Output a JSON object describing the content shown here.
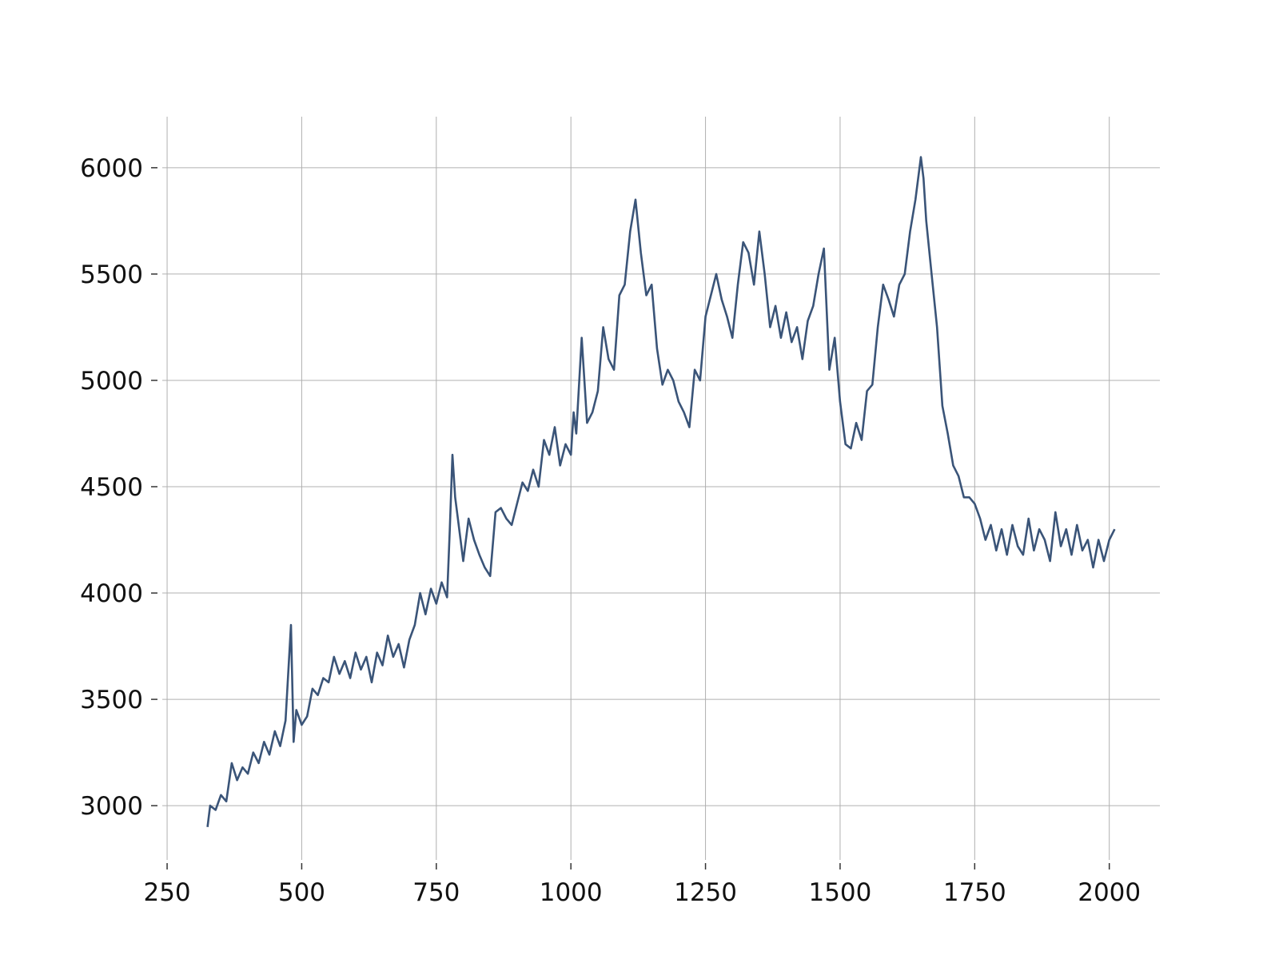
{
  "chart_data": {
    "type": "line",
    "x": [
      325,
      330,
      340,
      350,
      360,
      370,
      380,
      390,
      400,
      410,
      420,
      430,
      440,
      450,
      460,
      470,
      480,
      485,
      490,
      500,
      510,
      520,
      530,
      540,
      550,
      560,
      570,
      580,
      590,
      600,
      610,
      620,
      630,
      640,
      650,
      660,
      670,
      680,
      690,
      700,
      710,
      720,
      730,
      740,
      750,
      760,
      770,
      775,
      780,
      785,
      790,
      800,
      810,
      820,
      830,
      840,
      850,
      860,
      870,
      880,
      890,
      900,
      910,
      920,
      930,
      940,
      950,
      960,
      970,
      980,
      990,
      1000,
      1005,
      1010,
      1020,
      1030,
      1040,
      1050,
      1060,
      1070,
      1080,
      1090,
      1100,
      1110,
      1120,
      1130,
      1140,
      1150,
      1160,
      1170,
      1180,
      1190,
      1200,
      1210,
      1220,
      1230,
      1240,
      1250,
      1260,
      1270,
      1280,
      1290,
      1300,
      1310,
      1320,
      1330,
      1340,
      1350,
      1360,
      1370,
      1380,
      1390,
      1400,
      1410,
      1420,
      1430,
      1440,
      1450,
      1460,
      1470,
      1480,
      1490,
      1500,
      1510,
      1520,
      1530,
      1540,
      1550,
      1560,
      1570,
      1580,
      1590,
      1600,
      1610,
      1620,
      1630,
      1640,
      1650,
      1655,
      1660,
      1670,
      1680,
      1690,
      1700,
      1710,
      1720,
      1730,
      1740,
      1750,
      1760,
      1770,
      1780,
      1790,
      1800,
      1810,
      1820,
      1830,
      1840,
      1850,
      1860,
      1870,
      1880,
      1890,
      1900,
      1910,
      1920,
      1930,
      1940,
      1950,
      1960,
      1970,
      1980,
      1990,
      2000,
      2010
    ],
    "series": [
      {
        "color": "#3a5478",
        "values": [
          2900,
          3000,
          2980,
          3050,
          3020,
          3200,
          3120,
          3180,
          3150,
          3250,
          3200,
          3300,
          3240,
          3350,
          3280,
          3400,
          3850,
          3300,
          3450,
          3380,
          3420,
          3550,
          3520,
          3600,
          3580,
          3700,
          3620,
          3680,
          3600,
          3720,
          3640,
          3700,
          3580,
          3720,
          3660,
          3800,
          3700,
          3760,
          3650,
          3780,
          3850,
          4000,
          3900,
          4020,
          3950,
          4050,
          3980,
          4300,
          4650,
          4450,
          4350,
          4150,
          4350,
          4250,
          4180,
          4120,
          4080,
          4380,
          4400,
          4350,
          4320,
          4420,
          4520,
          4480,
          4580,
          4500,
          4720,
          4650,
          4780,
          4600,
          4700,
          4650,
          4850,
          4750,
          5200,
          4800,
          4850,
          4950,
          5250,
          5100,
          5050,
          5400,
          5450,
          5700,
          5850,
          5600,
          5400,
          5450,
          5150,
          4980,
          5050,
          5000,
          4900,
          4850,
          4780,
          5050,
          5000,
          5300,
          5400,
          5500,
          5380,
          5300,
          5200,
          5450,
          5650,
          5600,
          5450,
          5700,
          5500,
          5250,
          5350,
          5200,
          5320,
          5180,
          5250,
          5100,
          5280,
          5350,
          5500,
          5620,
          5050,
          5200,
          4900,
          4700,
          4680,
          4800,
          4720,
          4950,
          4980,
          5250,
          5450,
          5380,
          5300,
          5450,
          5500,
          5700,
          5850,
          6050,
          5950,
          5750,
          5500,
          5250,
          4880,
          4750,
          4600,
          4550,
          4450,
          4450,
          4420,
          4350,
          4250,
          4320,
          4200,
          4300,
          4180,
          4320,
          4220,
          4180,
          4350,
          4200,
          4300,
          4250,
          4150,
          4380,
          4220,
          4300,
          4180,
          4320,
          4200,
          4250,
          4120,
          4250,
          4150,
          4250,
          4300
        ]
      }
    ],
    "xlim": [
      241,
      2094
    ],
    "ylim": [
      2745,
      6240
    ],
    "xticks": [
      250,
      500,
      750,
      1000,
      1250,
      1500,
      1750,
      2000
    ],
    "yticks": [
      3000,
      3500,
      4000,
      4500,
      5000,
      5500,
      6000
    ],
    "grid": true
  }
}
